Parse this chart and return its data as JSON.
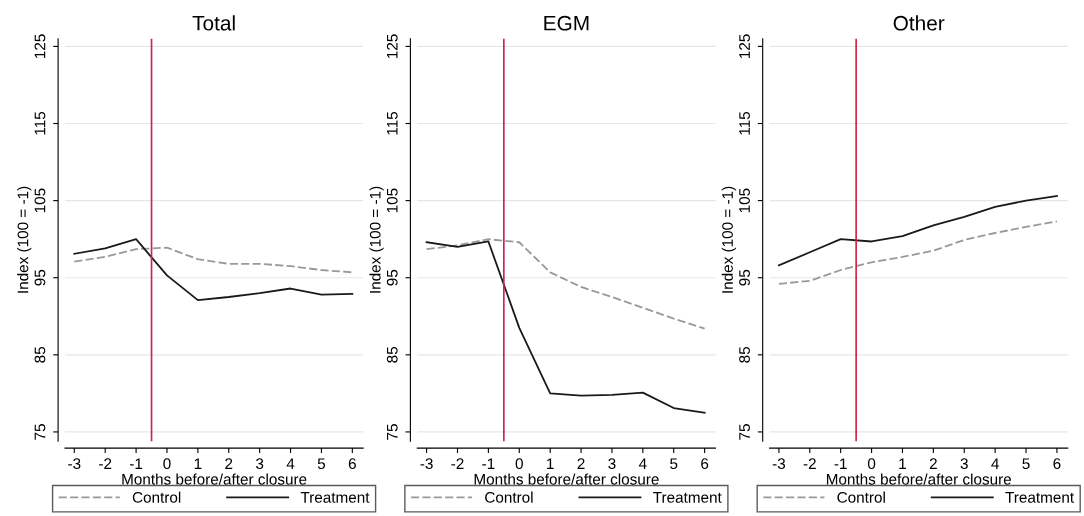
{
  "chart_data": [
    {
      "type": "line",
      "title": "Total",
      "xlabel": "Months before/after closure",
      "ylabel": "Index (100 = -1)",
      "x": [
        -3,
        -2,
        -1,
        0,
        1,
        2,
        3,
        4,
        5,
        6
      ],
      "xlim": [
        -3.3,
        6.35
      ],
      "xticks": [
        -3,
        -2,
        -1,
        0,
        1,
        2,
        3,
        4,
        5,
        6
      ],
      "ylim": [
        73.8,
        126
      ],
      "yticks": [
        75,
        85,
        95,
        105,
        115,
        125
      ],
      "grid": "y",
      "legend": "bottom",
      "ref_lines": [
        {
          "axis": "x",
          "value": -0.5,
          "color": "#d2234f"
        }
      ],
      "series": [
        {
          "name": "Control",
          "color": "#999999",
          "line_style": "dashed",
          "values": [
            97.1,
            97.7,
            98.7,
            98.9,
            97.4,
            96.8,
            96.8,
            96.5,
            96.0,
            95.7
          ]
        },
        {
          "name": "Treatment",
          "color": "#1a1a1a",
          "line_style": "solid",
          "values": [
            98.1,
            98.8,
            100.0,
            95.3,
            92.1,
            92.5,
            93.0,
            93.6,
            92.8,
            92.9
          ]
        }
      ]
    },
    {
      "type": "line",
      "title": "EGM",
      "xlabel": "Months before/after closure",
      "ylabel": "Index (100 = -1)",
      "x": [
        -3,
        -2,
        -1,
        0,
        1,
        2,
        3,
        4,
        5,
        6
      ],
      "xlim": [
        -3.3,
        6.35
      ],
      "xticks": [
        -3,
        -2,
        -1,
        0,
        1,
        2,
        3,
        4,
        5,
        6
      ],
      "ylim": [
        73.8,
        126
      ],
      "yticks": [
        75,
        85,
        95,
        105,
        115,
        125
      ],
      "grid": "y",
      "legend": "bottom",
      "ref_lines": [
        {
          "axis": "x",
          "value": -0.5,
          "color": "#d2234f"
        }
      ],
      "series": [
        {
          "name": "Control",
          "color": "#999999",
          "line_style": "dashed",
          "values": [
            98.7,
            99.2,
            100.0,
            99.6,
            95.7,
            93.8,
            92.5,
            91.1,
            89.7,
            88.4
          ]
        },
        {
          "name": "Treatment",
          "color": "#1a1a1a",
          "line_style": "solid",
          "values": [
            99.6,
            99.0,
            99.7,
            88.5,
            80.0,
            79.7,
            79.8,
            80.1,
            78.1,
            77.5
          ]
        }
      ]
    },
    {
      "type": "line",
      "title": "Other",
      "xlabel": "Months before/after closure",
      "ylabel": "Index (100 = -1)",
      "x": [
        -3,
        -2,
        -1,
        0,
        1,
        2,
        3,
        4,
        5,
        6
      ],
      "xlim": [
        -3.3,
        6.35
      ],
      "xticks": [
        -3,
        -2,
        -1,
        0,
        1,
        2,
        3,
        4,
        5,
        6
      ],
      "ylim": [
        73.8,
        126
      ],
      "yticks": [
        75,
        85,
        95,
        105,
        115,
        125
      ],
      "grid": "y",
      "legend": "bottom",
      "ref_lines": [
        {
          "axis": "x",
          "value": -0.5,
          "color": "#d2234f"
        }
      ],
      "series": [
        {
          "name": "Control",
          "color": "#999999",
          "line_style": "dashed",
          "values": [
            94.2,
            94.6,
            96.0,
            97.0,
            97.7,
            98.5,
            99.9,
            100.8,
            101.6,
            102.3
          ]
        },
        {
          "name": "Treatment",
          "color": "#1a1a1a",
          "line_style": "solid",
          "values": [
            96.6,
            98.3,
            100.0,
            99.7,
            100.4,
            101.8,
            102.9,
            104.2,
            105.0,
            105.6
          ]
        }
      ]
    }
  ]
}
